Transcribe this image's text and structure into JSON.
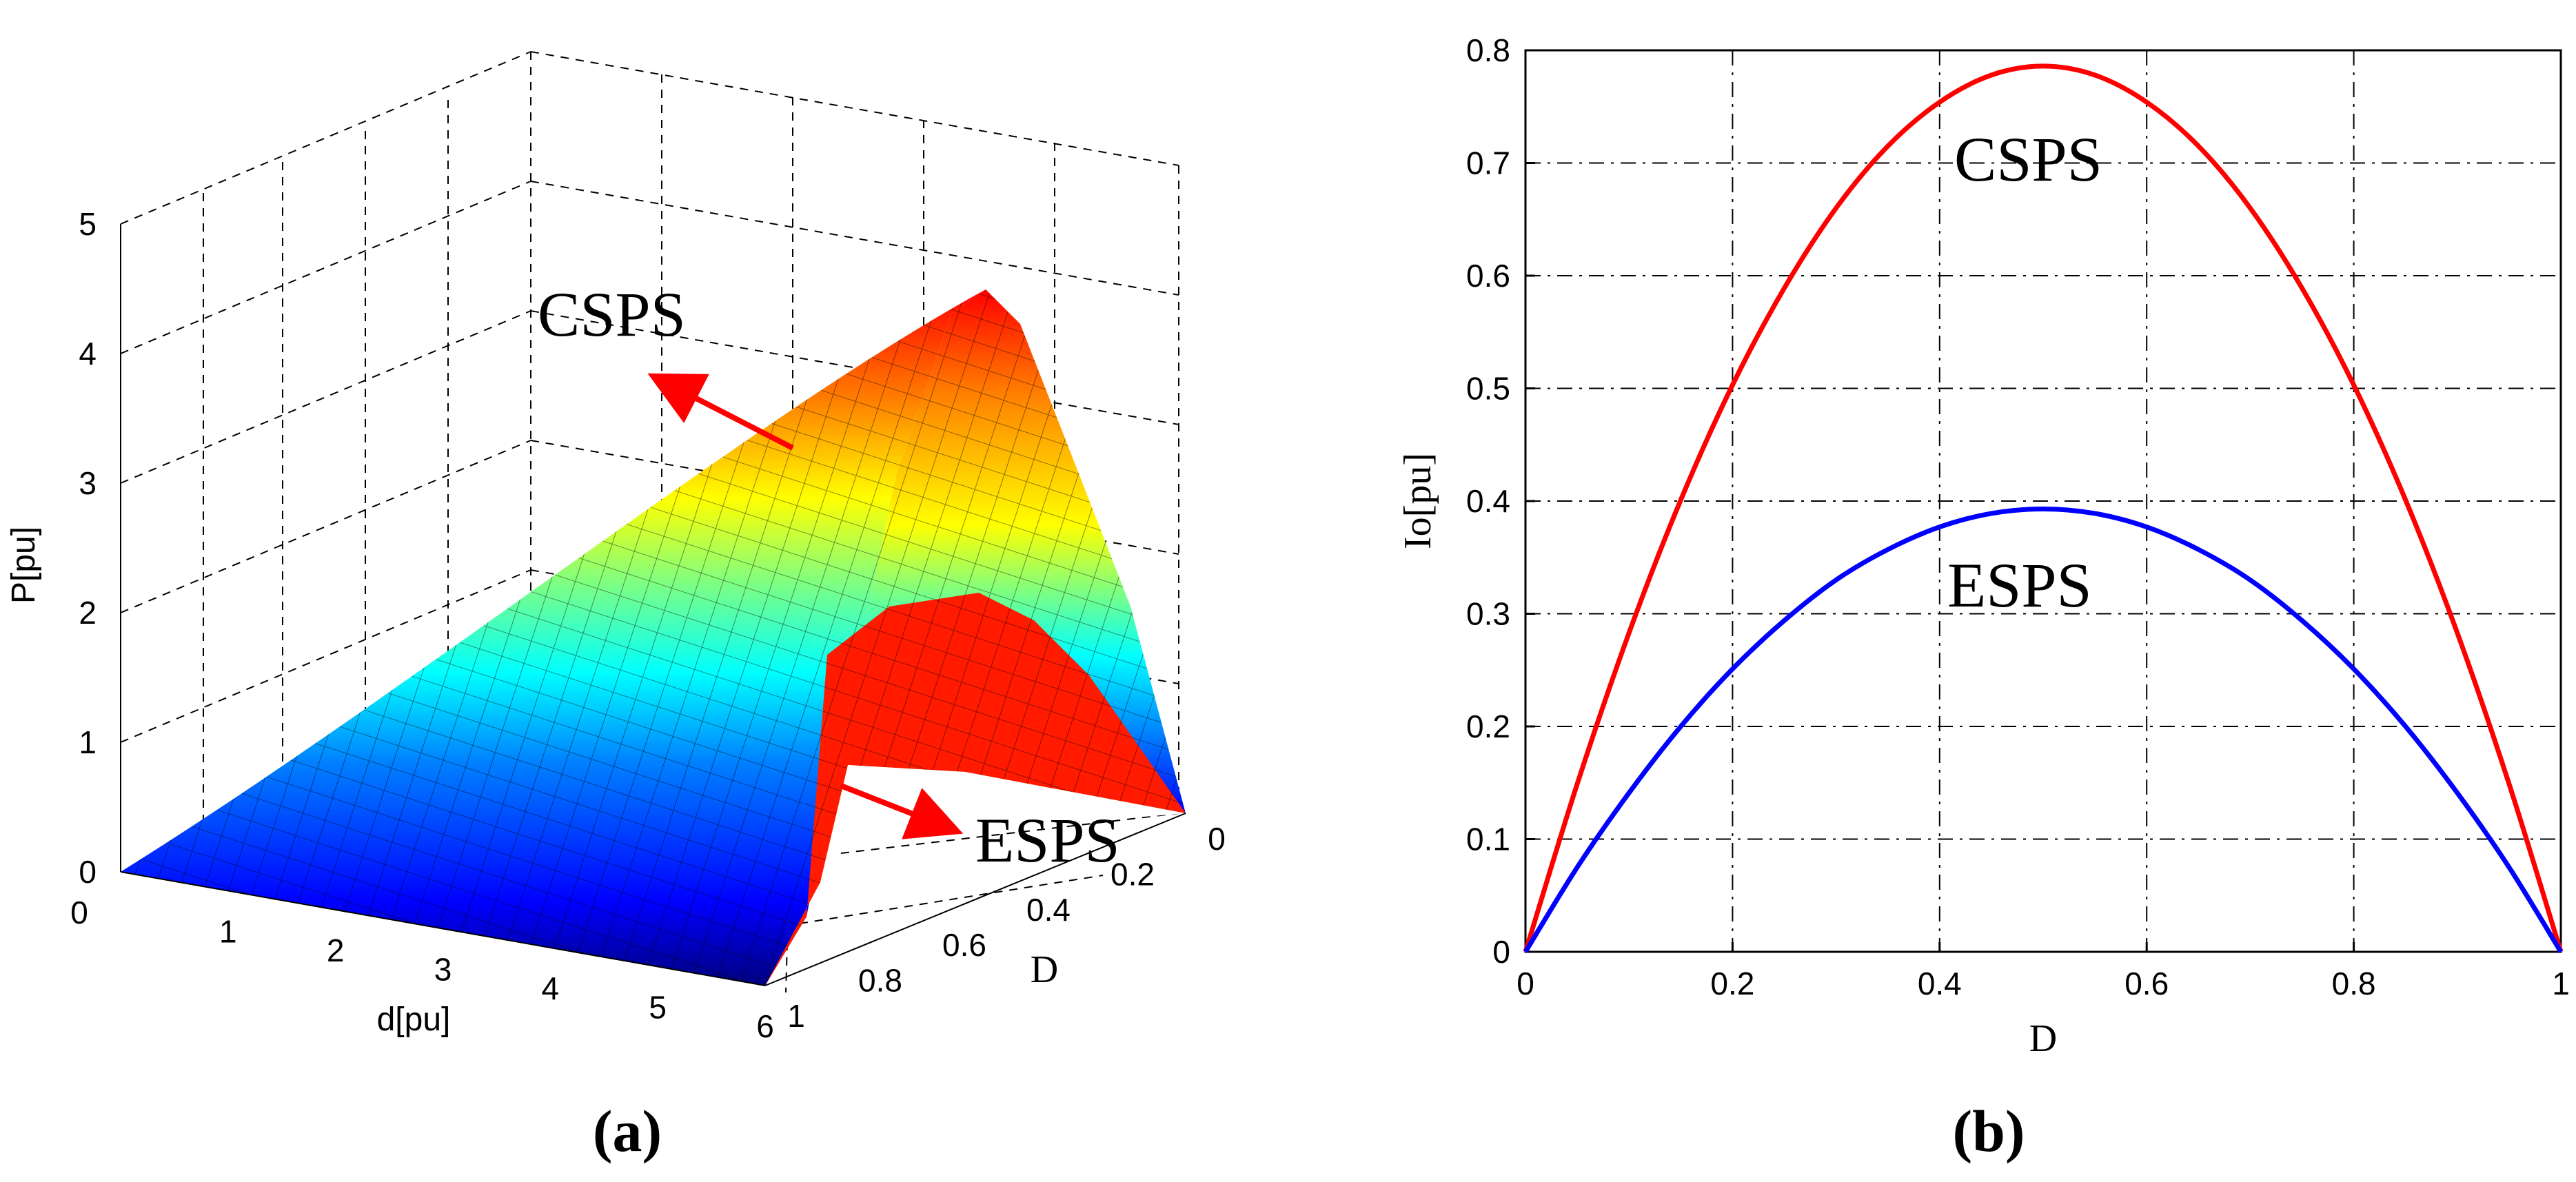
{
  "chart_data": [
    {
      "type": "surface",
      "panel_label": "(a)",
      "xlabel": "d[pu]",
      "ylabel": "D",
      "zlabel": "P[pu]",
      "xlim": [
        0,
        6
      ],
      "ylim": [
        0,
        1
      ],
      "zlim": [
        0,
        5
      ],
      "xticks": [
        "0",
        "1",
        "2",
        "3",
        "4",
        "5",
        "6"
      ],
      "yticks": [
        "0",
        "0.2",
        "0.4",
        "0.6",
        "0.8",
        "1"
      ],
      "zticks": [
        "0",
        "1",
        "2",
        "3",
        "4",
        "5"
      ],
      "grid": true,
      "annotations": [
        {
          "text": "CSPS"
        },
        {
          "text": "ESPS"
        }
      ],
      "series": [
        {
          "name": "CSPS",
          "peak_P": 4.7,
          "peak_at": {
            "d": 6,
            "D": 0.5
          }
        },
        {
          "name": "ESPS",
          "peak_P": 2.35,
          "peak_at": {
            "d": 6,
            "D": 0.5
          }
        }
      ],
      "colormap": "jet"
    },
    {
      "type": "line",
      "panel_label": "(b)",
      "xlabel": "D",
      "ylabel": "Io[pu]",
      "xlim": [
        0,
        1
      ],
      "ylim": [
        0,
        0.8
      ],
      "xticks": [
        "0",
        "0.2",
        "0.4",
        "0.6",
        "0.8",
        "1"
      ],
      "yticks": [
        "0",
        "0.1",
        "0.2",
        "0.3",
        "0.4",
        "0.5",
        "0.6",
        "0.7",
        "0.8"
      ],
      "grid": true,
      "x": [
        0,
        0.05,
        0.1,
        0.15,
        0.2,
        0.25,
        0.3,
        0.35,
        0.4,
        0.45,
        0.5,
        0.55,
        0.6,
        0.65,
        0.7,
        0.75,
        0.8,
        0.85,
        0.9,
        0.95,
        1.0
      ],
      "series": [
        {
          "name": "CSPS",
          "color": "#ff0000",
          "values": [
            0,
            0.149,
            0.283,
            0.401,
            0.503,
            0.589,
            0.66,
            0.715,
            0.754,
            0.778,
            0.786,
            0.778,
            0.754,
            0.715,
            0.66,
            0.589,
            0.503,
            0.401,
            0.283,
            0.149,
            0
          ]
        },
        {
          "name": "ESPS",
          "color": "#0000ff",
          "values": [
            0,
            0.075,
            0.141,
            0.2,
            0.251,
            0.294,
            0.33,
            0.357,
            0.377,
            0.389,
            0.393,
            0.389,
            0.377,
            0.357,
            0.33,
            0.294,
            0.251,
            0.2,
            0.141,
            0.075,
            0
          ]
        }
      ],
      "annotations": [
        {
          "text": "CSPS"
        },
        {
          "text": "ESPS"
        }
      ]
    }
  ]
}
